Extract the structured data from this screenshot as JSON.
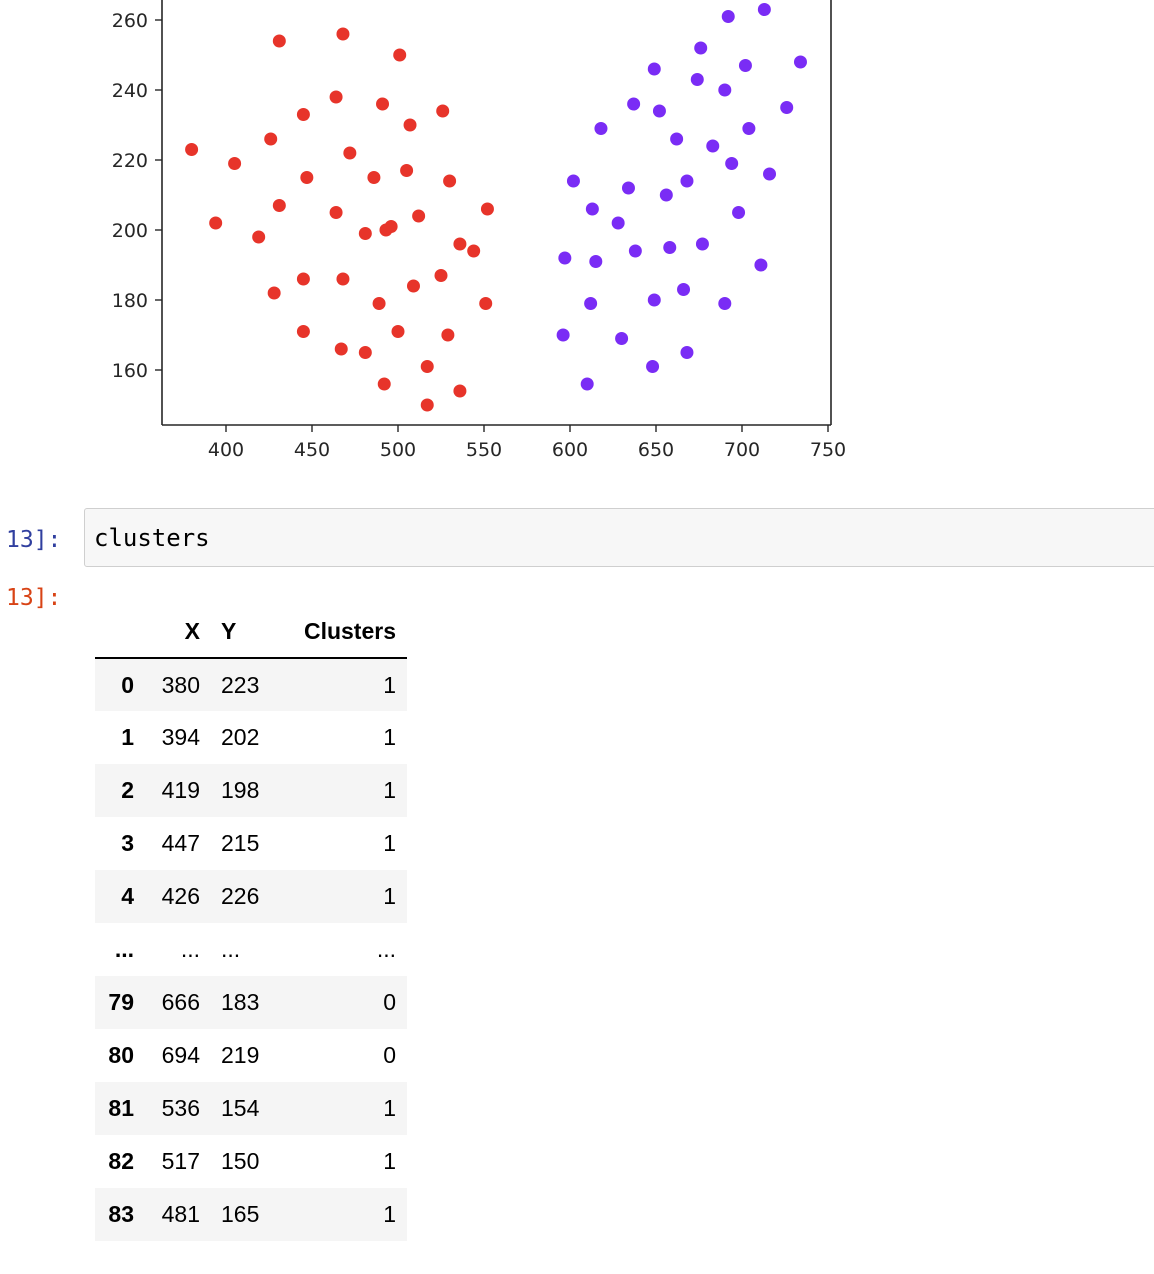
{
  "plot": {
    "x_ticks": [
      400,
      450,
      500,
      550,
      600,
      650,
      700,
      750
    ],
    "y_ticks": [
      160,
      180,
      200,
      220,
      240,
      260
    ],
    "colors": {
      "cluster_0": "#7a2cf5",
      "cluster_1": "#e7342a",
      "axis": "#262626"
    }
  },
  "chart_data": {
    "type": "scatter",
    "xlim": [
      362,
      752
    ],
    "ylim": [
      144,
      266
    ],
    "grid": false,
    "series": [
      {
        "color": "#e7342a",
        "points": [
          [
            380,
            223
          ],
          [
            394,
            202
          ],
          [
            419,
            198
          ],
          [
            447,
            215
          ],
          [
            426,
            226
          ],
          [
            405,
            219
          ],
          [
            431,
            254
          ],
          [
            468,
            256
          ],
          [
            501,
            250
          ],
          [
            445,
            233
          ],
          [
            464,
            238
          ],
          [
            491,
            236
          ],
          [
            507,
            230
          ],
          [
            526,
            234
          ],
          [
            472,
            222
          ],
          [
            486,
            215
          ],
          [
            505,
            217
          ],
          [
            530,
            214
          ],
          [
            431,
            207
          ],
          [
            464,
            205
          ],
          [
            481,
            199
          ],
          [
            493,
            200
          ],
          [
            496,
            201
          ],
          [
            512,
            204
          ],
          [
            552,
            206
          ],
          [
            536,
            196
          ],
          [
            544,
            194
          ],
          [
            445,
            186
          ],
          [
            468,
            186
          ],
          [
            428,
            182
          ],
          [
            489,
            179
          ],
          [
            509,
            184
          ],
          [
            525,
            187
          ],
          [
            551,
            179
          ],
          [
            445,
            171
          ],
          [
            500,
            171
          ],
          [
            529,
            170
          ],
          [
            467,
            166
          ],
          [
            481,
            165
          ],
          [
            517,
            161
          ],
          [
            492,
            156
          ],
          [
            536,
            154
          ],
          [
            517,
            150
          ]
        ]
      },
      {
        "color": "#7a2cf5",
        "points": [
          [
            692,
            261
          ],
          [
            713,
            263
          ],
          [
            676,
            252
          ],
          [
            649,
            246
          ],
          [
            674,
            243
          ],
          [
            702,
            247
          ],
          [
            734,
            248
          ],
          [
            690,
            240
          ],
          [
            637,
            236
          ],
          [
            652,
            234
          ],
          [
            726,
            235
          ],
          [
            618,
            229
          ],
          [
            662,
            226
          ],
          [
            704,
            229
          ],
          [
            683,
            224
          ],
          [
            694,
            219
          ],
          [
            716,
            216
          ],
          [
            602,
            214
          ],
          [
            634,
            212
          ],
          [
            656,
            210
          ],
          [
            668,
            214
          ],
          [
            613,
            206
          ],
          [
            628,
            202
          ],
          [
            698,
            205
          ],
          [
            597,
            192
          ],
          [
            615,
            191
          ],
          [
            638,
            194
          ],
          [
            658,
            195
          ],
          [
            677,
            196
          ],
          [
            711,
            190
          ],
          [
            612,
            179
          ],
          [
            649,
            180
          ],
          [
            666,
            183
          ],
          [
            690,
            179
          ],
          [
            596,
            170
          ],
          [
            630,
            169
          ],
          [
            668,
            165
          ],
          [
            648,
            161
          ],
          [
            610,
            156
          ]
        ]
      }
    ]
  },
  "input_cell": {
    "prompt": "13]:",
    "code": "clusters"
  },
  "output_cell": {
    "prompt": "13]:"
  },
  "table": {
    "columns": [
      "X",
      "Y",
      "Clusters"
    ],
    "rows": [
      {
        "index": "0",
        "x": "380",
        "y": "223",
        "cluster": "1"
      },
      {
        "index": "1",
        "x": "394",
        "y": "202",
        "cluster": "1"
      },
      {
        "index": "2",
        "x": "419",
        "y": "198",
        "cluster": "1"
      },
      {
        "index": "3",
        "x": "447",
        "y": "215",
        "cluster": "1"
      },
      {
        "index": "4",
        "x": "426",
        "y": "226",
        "cluster": "1"
      },
      {
        "index": "...",
        "x": "...",
        "y": "...",
        "cluster": "..."
      },
      {
        "index": "79",
        "x": "666",
        "y": "183",
        "cluster": "0"
      },
      {
        "index": "80",
        "x": "694",
        "y": "219",
        "cluster": "0"
      },
      {
        "index": "81",
        "x": "536",
        "y": "154",
        "cluster": "1"
      },
      {
        "index": "82",
        "x": "517",
        "y": "150",
        "cluster": "1"
      },
      {
        "index": "83",
        "x": "481",
        "y": "165",
        "cluster": "1"
      }
    ]
  }
}
